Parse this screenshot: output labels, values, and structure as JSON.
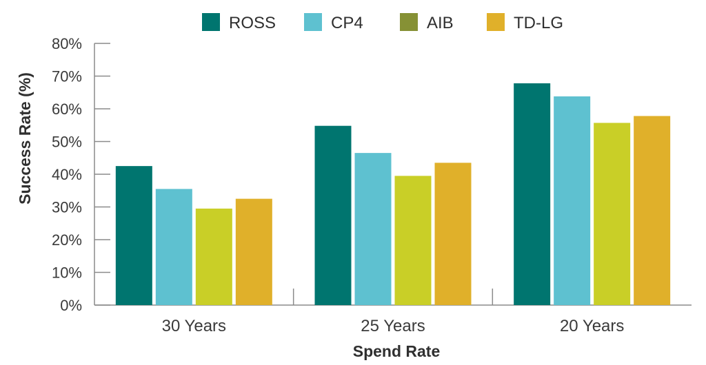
{
  "chart_data": {
    "type": "bar",
    "categories": [
      "30 Years",
      "25 Years",
      "20 Years"
    ],
    "series": [
      {
        "name": "ROSS",
        "color": "#00756f",
        "values": [
          42.5,
          54.8,
          67.8
        ]
      },
      {
        "name": "CP4",
        "color": "#5ec1d0",
        "values": [
          35.5,
          46.5,
          63.8
        ]
      },
      {
        "name": "AIB",
        "color": "#c9cf27",
        "legend_color": "#869135",
        "values": [
          29.5,
          39.5,
          55.7
        ]
      },
      {
        "name": "TD-LG",
        "color": "#e0b02a",
        "values": [
          32.5,
          43.5,
          57.8
        ]
      }
    ],
    "xlabel": "Spend Rate",
    "ylabel": "Success Rate (%)",
    "ylim": [
      0,
      80
    ],
    "yticks": [
      0,
      10,
      20,
      30,
      40,
      50,
      60,
      70,
      80
    ],
    "ytick_labels": [
      "0%",
      "10%",
      "20%",
      "30%",
      "40%",
      "50%",
      "60%",
      "70%",
      "80%"
    ],
    "legend_position": "top-center",
    "grid": false
  }
}
